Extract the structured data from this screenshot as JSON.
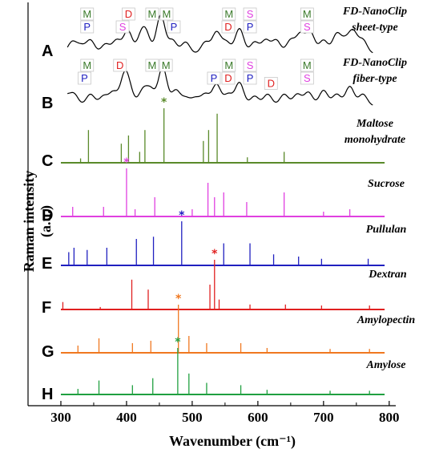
{
  "axes": {
    "ylabel": "Raman intensity (a.u.)",
    "xlabel": "Wavenumber (cm⁻¹)",
    "xticks": [
      "300",
      "400",
      "500",
      "600",
      "700",
      "800"
    ]
  },
  "chart_data": {
    "type": "line",
    "title": "",
    "xlabel": "Wavenumber (cm-1)",
    "ylabel": "Raman intensity (a.u.)",
    "xlim": [
      250,
      810
    ],
    "grid": false,
    "panels": [
      {
        "letter": "A",
        "name": "FD-NanoClip sheet-type",
        "color": "#000000",
        "kind": "curve",
        "peaks": [
          [
            317,
            0.3
          ],
          [
            330,
            0.2
          ],
          [
            345,
            0.35
          ],
          [
            368,
            0.25
          ],
          [
            385,
            0.35
          ],
          [
            402,
            0.6
          ],
          [
            422,
            0.4
          ],
          [
            430,
            0.45
          ],
          [
            452,
            1.0
          ],
          [
            470,
            0.35
          ],
          [
            490,
            0.3
          ],
          [
            520,
            0.3
          ],
          [
            537,
            0.55
          ],
          [
            552,
            0.3
          ],
          [
            572,
            0.65
          ],
          [
            595,
            0.3
          ],
          [
            612,
            0.35
          ],
          [
            628,
            0.35
          ],
          [
            650,
            0.35
          ],
          [
            665,
            0.5
          ],
          [
            680,
            0.55
          ],
          [
            700,
            0.35
          ],
          [
            720,
            0.5
          ],
          [
            733,
            0.3
          ],
          [
            745,
            0.55
          ],
          [
            760,
            0.35
          ]
        ],
        "annotations": [
          {
            "text": "M",
            "x": 340,
            "row": 0
          },
          {
            "text": "P",
            "x": 340,
            "row": 1
          },
          {
            "text": "D",
            "x": 403,
            "row": 0
          },
          {
            "text": "S",
            "x": 394,
            "row": 1
          },
          {
            "text": "M",
            "x": 439,
            "row": 0
          },
          {
            "text": "M",
            "x": 461,
            "row": 0
          },
          {
            "text": "P",
            "x": 472,
            "row": 1
          },
          {
            "text": "M",
            "x": 556,
            "row": 0
          },
          {
            "text": "D",
            "x": 555,
            "row": 1
          },
          {
            "text": "S",
            "x": 588,
            "row": 0
          },
          {
            "text": "P",
            "x": 588,
            "row": 1
          },
          {
            "text": "M",
            "x": 675,
            "row": 0
          },
          {
            "text": "S",
            "x": 675,
            "row": 1
          }
        ]
      },
      {
        "letter": "B",
        "name": "FD-NanoClip fiber-type",
        "color": "#000000",
        "kind": "curve",
        "peaks": [
          [
            307,
            0.25
          ],
          [
            320,
            0.3
          ],
          [
            345,
            0.3
          ],
          [
            365,
            0.25
          ],
          [
            380,
            0.35
          ],
          [
            397,
            0.75
          ],
          [
            405,
            0.3
          ],
          [
            425,
            0.4
          ],
          [
            437,
            0.4
          ],
          [
            455,
            1.0
          ],
          [
            475,
            0.4
          ],
          [
            490,
            0.2
          ],
          [
            505,
            0.2
          ],
          [
            520,
            0.3
          ],
          [
            537,
            0.55
          ],
          [
            555,
            0.3
          ],
          [
            572,
            0.6
          ],
          [
            595,
            0.25
          ],
          [
            615,
            0.3
          ],
          [
            640,
            0.3
          ],
          [
            660,
            0.3
          ],
          [
            677,
            0.35
          ],
          [
            700,
            0.4
          ],
          [
            720,
            0.3
          ],
          [
            740,
            0.5
          ],
          [
            760,
            0.3
          ]
        ],
        "annotations": [
          {
            "text": "M",
            "x": 340,
            "row": 0
          },
          {
            "text": "P",
            "x": 336,
            "row": 1
          },
          {
            "text": "D",
            "x": 390,
            "row": 0
          },
          {
            "text": "M",
            "x": 439,
            "row": 0
          },
          {
            "text": "M",
            "x": 460,
            "row": 0
          },
          {
            "text": "P",
            "x": 533,
            "row": 1
          },
          {
            "text": "M",
            "x": 556,
            "row": 0
          },
          {
            "text": "D",
            "x": 555,
            "row": 1
          },
          {
            "text": "S",
            "x": 588,
            "row": 0
          },
          {
            "text": "P",
            "x": 588,
            "row": 1
          },
          {
            "text": "D",
            "x": 620,
            "row": 1.4
          },
          {
            "text": "M",
            "x": 675,
            "row": 0
          },
          {
            "text": "S",
            "x": 675,
            "row": 1
          }
        ]
      },
      {
        "letter": "C",
        "name": "Maltose monohydrate",
        "color": "#5a8a2a",
        "kind": "sticks",
        "star": 457,
        "peaks": [
          [
            330,
            0.08
          ],
          [
            342,
            0.6
          ],
          [
            392,
            0.35
          ],
          [
            403,
            0.5
          ],
          [
            420,
            0.2
          ],
          [
            428,
            0.6
          ],
          [
            457,
            1.0
          ],
          [
            517,
            0.4
          ],
          [
            525,
            0.6
          ],
          [
            538,
            0.9
          ],
          [
            584,
            0.1
          ],
          [
            640,
            0.2
          ]
        ]
      },
      {
        "letter": "D",
        "name": "Sucrose",
        "color": "#e040e0",
        "kind": "sticks",
        "star": 400,
        "peaks": [
          [
            318,
            0.2
          ],
          [
            365,
            0.2
          ],
          [
            400,
            1.0
          ],
          [
            413,
            0.15
          ],
          [
            443,
            0.4
          ],
          [
            500,
            0.15
          ],
          [
            524,
            0.7
          ],
          [
            534,
            0.4
          ],
          [
            548,
            0.5
          ],
          [
            583,
            0.3
          ],
          [
            640,
            0.5
          ],
          [
            700,
            0.1
          ],
          [
            740,
            0.15
          ]
        ]
      },
      {
        "letter": "E",
        "name": "Pullulan",
        "color": "#2020c0",
        "kind": "sticks",
        "star": 484,
        "peaks": [
          [
            312,
            0.3
          ],
          [
            320,
            0.4
          ],
          [
            340,
            0.35
          ],
          [
            370,
            0.4
          ],
          [
            415,
            0.6
          ],
          [
            441,
            0.65
          ],
          [
            484,
            1.0
          ],
          [
            548,
            0.5
          ],
          [
            588,
            0.5
          ],
          [
            624,
            0.25
          ],
          [
            662,
            0.2
          ],
          [
            697,
            0.15
          ],
          [
            768,
            0.15
          ]
        ]
      },
      {
        "letter": "F",
        "name": "Dextran",
        "color": "#e02020",
        "kind": "sticks",
        "star": 534,
        "peaks": [
          [
            303,
            0.15
          ],
          [
            360,
            0.05
          ],
          [
            408,
            0.6
          ],
          [
            433,
            0.4
          ],
          [
            527,
            0.5
          ],
          [
            534,
            1.0
          ],
          [
            541,
            0.2
          ],
          [
            588,
            0.1
          ],
          [
            642,
            0.1
          ],
          [
            697,
            0.08
          ],
          [
            770,
            0.08
          ]
        ]
      },
      {
        "letter": "G",
        "name": "Amylopectin",
        "color": "#f07820",
        "kind": "sticks",
        "star": 479,
        "peaks": [
          [
            326,
            0.15
          ],
          [
            358,
            0.3
          ],
          [
            409,
            0.2
          ],
          [
            437,
            0.25
          ],
          [
            479,
            1.0
          ],
          [
            495,
            0.35
          ],
          [
            522,
            0.2
          ],
          [
            574,
            0.2
          ],
          [
            614,
            0.1
          ],
          [
            710,
            0.08
          ],
          [
            770,
            0.08
          ]
        ]
      },
      {
        "letter": "H",
        "name": "Amylose",
        "color": "#20a040",
        "kind": "sticks",
        "star": 478,
        "peaks": [
          [
            326,
            0.12
          ],
          [
            358,
            0.3
          ],
          [
            409,
            0.2
          ],
          [
            440,
            0.35
          ],
          [
            478,
            1.0
          ],
          [
            495,
            0.45
          ],
          [
            522,
            0.25
          ],
          [
            574,
            0.2
          ],
          [
            614,
            0.1
          ],
          [
            710,
            0.08
          ],
          [
            770,
            0.08
          ]
        ]
      }
    ],
    "annotation_colors": {
      "M": "#3a7a2a",
      "D": "#e02020",
      "P": "#2020c0",
      "S": "#e040e0"
    }
  }
}
